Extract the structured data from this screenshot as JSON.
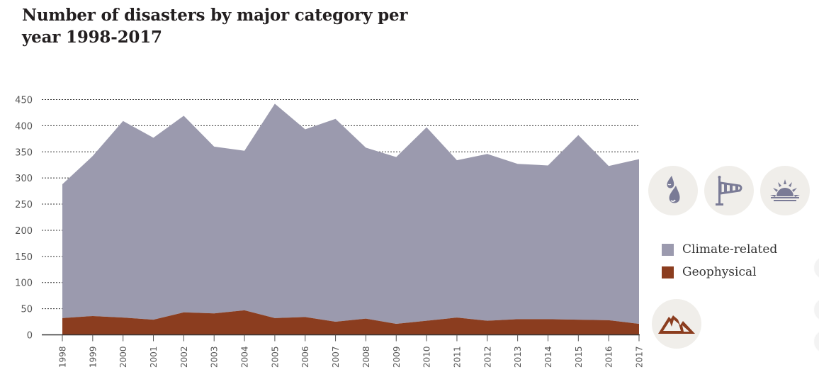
{
  "chart_data": {
    "type": "area",
    "stacked": true,
    "title": "Number of disasters by major category per year 1998-2017",
    "title_lines": [
      "Number of disasters by major category per",
      "year 1998-2017"
    ],
    "xlabel": "",
    "ylabel": "",
    "ylim": [
      0,
      450
    ],
    "yticks": [
      0,
      50,
      100,
      150,
      200,
      250,
      300,
      350,
      400,
      450
    ],
    "grid": true,
    "x": [
      "1998",
      "1999",
      "2000",
      "2001",
      "2002",
      "2003",
      "2004",
      "2005",
      "2006",
      "2007",
      "2008",
      "2009",
      "2010",
      "2011",
      "2012",
      "2013",
      "2014",
      "2015",
      "2016",
      "2017"
    ],
    "series": [
      {
        "name": "Geophysical",
        "color": "#8b3d1f",
        "values": [
          32,
          36,
          33,
          29,
          43,
          41,
          47,
          32,
          34,
          25,
          31,
          21,
          27,
          33,
          27,
          30,
          30,
          29,
          28,
          21
        ]
      },
      {
        "name": "Climate-related",
        "color": "#9b9aae",
        "values": [
          256,
          306,
          376,
          348,
          376,
          319,
          305,
          410,
          359,
          388,
          327,
          319,
          370,
          301,
          319,
          297,
          294,
          353,
          295,
          315
        ]
      }
    ],
    "legend": {
      "position": "right",
      "entries": [
        {
          "label": "Climate-related",
          "color": "#9b9aae"
        },
        {
          "label": "Geophysical",
          "color": "#8b3d1f"
        }
      ]
    }
  },
  "icons": {
    "climate": [
      "rain-drops-icon",
      "windsock-icon",
      "sun-icon"
    ],
    "geophysical": [
      "mountain-icon"
    ],
    "icon_color_climate": "#7a7b96",
    "icon_color_geophysical": "#8b3d1f",
    "circle_bg": "#f0eeea"
  }
}
